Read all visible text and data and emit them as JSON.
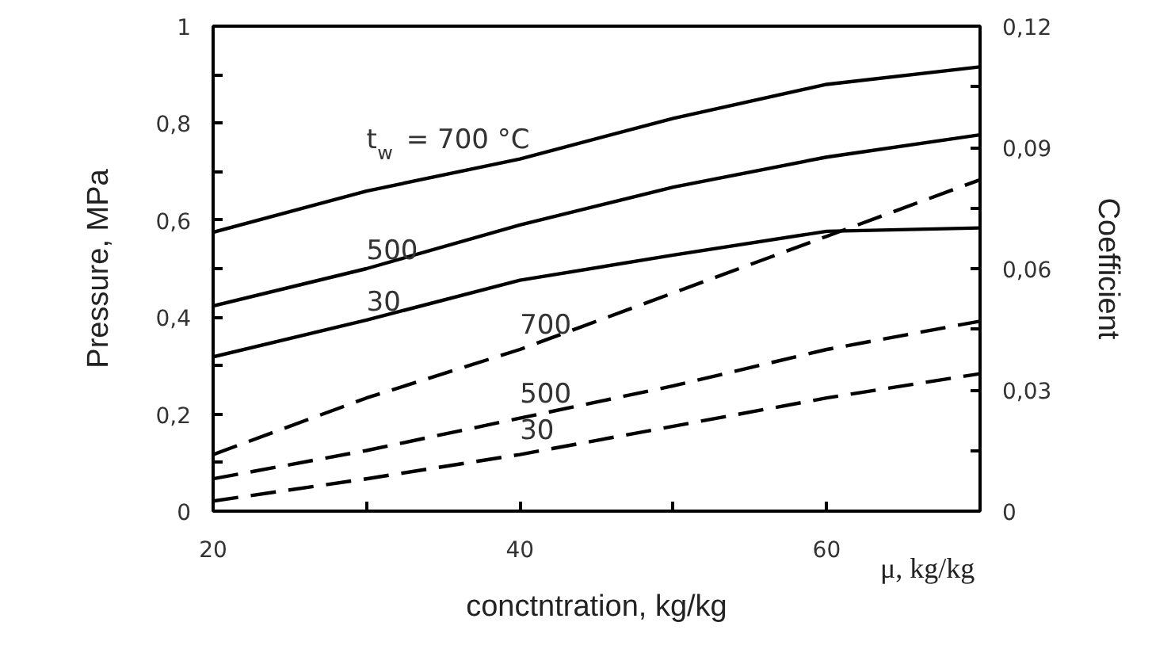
{
  "chart_data": {
    "type": "line",
    "xlabel": "conctntration, kg/kg",
    "ylabel": "Pressure, MPa",
    "y2label": "Coefficient",
    "x": [
      20,
      30,
      40,
      50,
      60,
      70
    ],
    "xlim": [
      20,
      70
    ],
    "xticks": [
      20,
      {
        "value": 30,
        "label": null
      },
      40,
      {
        "value": 50,
        "label": null
      },
      60,
      {
        "value": 70,
        "label": null
      }
    ],
    "ylim": [
      0,
      1
    ],
    "yticks": [
      0,
      {
        "value": 0.1,
        "label": null
      },
      {
        "value": 0.2,
        "label": "0,2"
      },
      {
        "value": 0.3,
        "label": null
      },
      {
        "value": 0.4,
        "label": "0,4"
      },
      {
        "value": 0.5,
        "label": null
      },
      {
        "value": 0.6,
        "label": "0,6"
      },
      {
        "value": 0.7,
        "label": null
      },
      {
        "value": 0.8,
        "label": "0,8"
      },
      {
        "value": 0.9,
        "label": null
      },
      1
    ],
    "y2lim": [
      0,
      0.12
    ],
    "y2ticks": [
      0,
      {
        "value": 0.015,
        "label": null
      },
      {
        "value": 0.03,
        "label": "0,03"
      },
      {
        "value": 0.045,
        "label": null
      },
      {
        "value": 0.06,
        "label": "0,06"
      },
      {
        "value": 0.075,
        "label": null
      },
      {
        "value": 0.09,
        "label": "0,09"
      },
      {
        "value": 0.105,
        "label": null
      },
      {
        "value": 0.12,
        "label": "0,12"
      }
    ],
    "series": [
      {
        "name": "t$_{w}$ = 700 °C",
        "color": "#000000",
        "line_style": "solid",
        "values": [
          0.575,
          0.66,
          0.726,
          0.81,
          0.88,
          0.916
        ]
      },
      {
        "name": "500",
        "color": "#000000",
        "line_style": "solid",
        "values": [
          0.423,
          0.5,
          0.59,
          0.668,
          0.73,
          0.776
        ]
      },
      {
        "name": "30",
        "color": "#000000",
        "line_style": "solid",
        "values": [
          0.318,
          0.394,
          0.476,
          0.528,
          0.577,
          0.584
        ]
      },
      {
        "name": "700",
        "color": "#000000",
        "line_style": "dashed",
        "axis": "y2",
        "values": [
          0.014,
          0.028,
          0.04,
          0.054,
          0.068,
          0.082
        ]
      },
      {
        "name": "500",
        "color": "#000000",
        "line_style": "dashed",
        "axis": "y2",
        "values": [
          0.008,
          0.015,
          0.023,
          0.031,
          0.04,
          0.047
        ]
      },
      {
        "name": "30",
        "color": "#000000",
        "line_style": "dashed",
        "axis": "y2",
        "values": [
          0.0025,
          0.008,
          0.014,
          0.021,
          0.028,
          0.034
        ]
      }
    ],
    "annotations": [
      "μ, kg/kg"
    ]
  }
}
